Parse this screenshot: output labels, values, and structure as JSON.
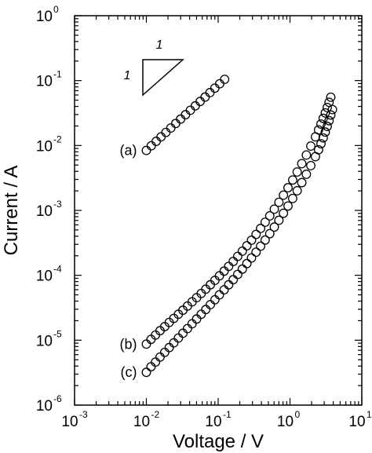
{
  "chart_data": {
    "type": "scatter",
    "xlabel": "Voltage  /  V",
    "ylabel": "Current  /  A",
    "xscale": "log",
    "yscale": "log",
    "xlim": [
      0.001,
      10
    ],
    "ylim": [
      1e-06,
      1
    ],
    "x_ticks": [
      {
        "base": "10",
        "exp": "-3",
        "value": 0.001
      },
      {
        "base": "10",
        "exp": "-2",
        "value": 0.01
      },
      {
        "base": "10",
        "exp": "-1",
        "value": 0.1
      },
      {
        "base": "10",
        "exp": "0",
        "value": 1
      },
      {
        "base": "10",
        "exp": "1",
        "value": 10
      }
    ],
    "y_ticks": [
      {
        "base": "10",
        "exp": "0",
        "value": 1
      },
      {
        "base": "10",
        "exp": "-1",
        "value": 0.1
      },
      {
        "base": "10",
        "exp": "-2",
        "value": 0.01
      },
      {
        "base": "10",
        "exp": "-3",
        "value": 0.001
      },
      {
        "base": "10",
        "exp": "-4",
        "value": 0.0001
      },
      {
        "base": "10",
        "exp": "-5",
        "value": 1e-05
      },
      {
        "base": "10",
        "exp": "-6",
        "value": 1e-06
      }
    ],
    "marker": "open-circle",
    "grid": false,
    "series": [
      {
        "name": "(a)",
        "x": [
          0.01,
          0.0117,
          0.0137,
          0.016,
          0.0187,
          0.0219,
          0.0256,
          0.03,
          0.0351,
          0.041,
          0.048,
          0.0561,
          0.0657,
          0.0768,
          0.0899,
          0.105,
          0.123
        ],
        "y": [
          0.0084,
          0.0099,
          0.0116,
          0.0136,
          0.0159,
          0.0186,
          0.0218,
          0.0255,
          0.0298,
          0.0349,
          0.0408,
          0.0477,
          0.0558,
          0.0653,
          0.0764,
          0.0894,
          0.1046
        ]
      },
      {
        "name": "(b)",
        "x": [
          0.01,
          0.0116,
          0.0134,
          0.0155,
          0.018,
          0.0208,
          0.0241,
          0.0279,
          0.0323,
          0.0374,
          0.0433,
          0.0501,
          0.058,
          0.0672,
          0.0778,
          0.0901,
          0.104,
          0.121,
          0.14,
          0.162,
          0.187,
          0.217,
          0.251,
          0.291,
          0.337,
          0.39,
          0.451,
          0.523,
          0.605,
          0.701,
          0.811,
          0.939,
          1.09,
          1.26,
          1.46,
          1.69,
          1.95,
          2.26,
          2.5,
          2.7,
          2.9,
          3.1,
          3.3,
          3.5,
          3.7
        ],
        "y": [
          8.7e-06,
          1.03e-05,
          1.2e-05,
          1.4e-05,
          1.62e-05,
          1.88e-05,
          2.17e-05,
          2.51e-05,
          2.9e-05,
          3.36e-05,
          3.9e-05,
          4.52e-05,
          5.25e-05,
          6.12e-05,
          7.14e-05,
          8.36e-05,
          9.82e-05,
          0.0001159,
          0.0001373,
          0.0001635,
          0.0001957,
          0.0002356,
          0.0002853,
          0.0003478,
          0.0004267,
          0.0005274,
          0.0006569,
          0.0008247,
          0.001044,
          0.001333,
          0.001718,
          0.002236,
          0.002941,
          0.003909,
          0.005253,
          0.007136,
          0.009806,
          0.0136,
          0.0174,
          0.0214,
          0.0262,
          0.0318,
          0.0385,
          0.0463,
          0.0555
        ]
      },
      {
        "name": "(c)",
        "x": [
          0.01,
          0.0116,
          0.0134,
          0.0155,
          0.018,
          0.0208,
          0.0241,
          0.0279,
          0.0323,
          0.0374,
          0.0433,
          0.0501,
          0.058,
          0.0672,
          0.0778,
          0.0901,
          0.104,
          0.121,
          0.14,
          0.162,
          0.187,
          0.217,
          0.251,
          0.291,
          0.337,
          0.39,
          0.451,
          0.523,
          0.605,
          0.701,
          0.811,
          0.939,
          1.09,
          1.26,
          1.46,
          1.69,
          1.95,
          2.26,
          2.5,
          2.7,
          2.9,
          3.1,
          3.3,
          3.5,
          3.7,
          3.9
        ],
        "y": [
          3.2e-06,
          3.9e-06,
          4.6e-06,
          5.5e-06,
          6.5e-06,
          7.7e-06,
          9.1e-06,
          1.08e-05,
          1.28e-05,
          1.51e-05,
          1.79e-05,
          2.12e-05,
          2.51e-05,
          2.97e-05,
          3.53e-05,
          4.2e-05,
          5e-05,
          5.97e-05,
          7.14e-05,
          8.56e-05,
          0.0001031,
          0.0001247,
          0.0001515,
          0.0001851,
          0.0002273,
          0.0002809,
          0.0003494,
          0.0004379,
          0.0005531,
          0.000704,
          0.0009036,
          0.001169,
          0.001527,
          0.002012,
          0.002679,
          0.003604,
          0.004899,
          0.006733,
          0.008588,
          0.01063,
          0.0131,
          0.0161,
          0.0197,
          0.0241,
          0.0295,
          0.0358
        ]
      }
    ],
    "annotations": [
      {
        "text": "1"
      },
      {
        "text": "1"
      }
    ]
  }
}
